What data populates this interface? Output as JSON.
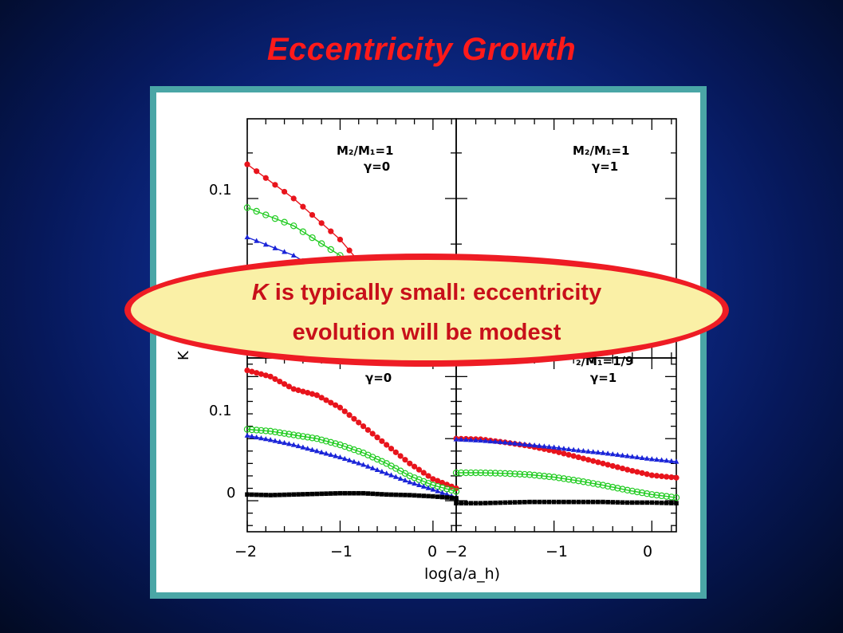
{
  "slide": {
    "title": "Eccentricity Growth"
  },
  "callout": {
    "italic_symbol": "K",
    "line1_rest": " is typically small: eccentricity",
    "line2": "evolution will be modest"
  },
  "figure": {
    "xlabel": "log(a/a_h)",
    "ylabel_fragment": "K",
    "colors": {
      "red": "#e8141c",
      "green": "#22cc22",
      "blue": "#1a24d8",
      "black": "#000000"
    },
    "panels": [
      {
        "id": "top-left",
        "label_mass": "M₂/M₁=1",
        "label_gamma": "γ=0",
        "y_tick_labels": [
          "0.1"
        ]
      },
      {
        "id": "top-right",
        "label_mass": "M₂/M₁=1",
        "label_gamma": "γ=1",
        "y_tick_labels": []
      },
      {
        "id": "bottom-left",
        "label_mass": "",
        "label_gamma": "γ=0",
        "y_tick_labels": [
          "0.1",
          "0"
        ]
      },
      {
        "id": "bottom-right",
        "label_mass": "₂/M₁=1/9",
        "label_gamma": "γ=1",
        "y_tick_labels": []
      }
    ],
    "x_tick_labels_left": [
      "−2",
      "−1",
      "0"
    ],
    "x_tick_labels_right": [
      "−2",
      "−1",
      "0"
    ]
  },
  "chart_data": [
    {
      "type": "line",
      "panel": "top-left",
      "title": "",
      "xlabel": "log(a/a_h)",
      "ylabel": "K",
      "xlim": [
        -2,
        0.25
      ],
      "x": [
        -2.0,
        -1.5,
        -1.0,
        -0.5,
        -0.25,
        0.0
      ],
      "series": [
        {
          "color": "#e8141c",
          "marker": "filled-circle",
          "values": [
            0.115,
            0.1,
            0.082,
            0.058,
            0.047,
            0.036
          ]
        },
        {
          "color": "#22cc22",
          "marker": "open-circle",
          "values": [
            0.096,
            0.088,
            0.075,
            0.061,
            0.055,
            0.05
          ]
        },
        {
          "color": "#1a24d8",
          "marker": "triangle",
          "values": [
            0.083,
            0.075,
            0.063,
            0.053,
            0.05,
            0.046
          ]
        }
      ]
    },
    {
      "type": "line",
      "panel": "top-right",
      "title": "",
      "xlabel": "log(a/a_h)",
      "ylabel": "",
      "xlim": [
        -2,
        0.25
      ],
      "x": [],
      "series": []
    },
    {
      "type": "line",
      "panel": "bottom-left",
      "title": "",
      "xlabel": "log(a/a_h)",
      "ylabel": "K",
      "xlim": [
        -2,
        0.25
      ],
      "x": [
        -2.0,
        -1.75,
        -1.5,
        -1.25,
        -1.0,
        -0.75,
        -0.5,
        -0.25,
        0.0,
        0.25
      ],
      "series": [
        {
          "color": "#e8141c",
          "marker": "filled-circle",
          "values": [
            0.21,
            0.2,
            0.18,
            0.17,
            0.15,
            0.12,
            0.09,
            0.06,
            0.035,
            0.02
          ]
        },
        {
          "color": "#22cc22",
          "marker": "open-circle",
          "values": [
            0.115,
            0.112,
            0.106,
            0.1,
            0.09,
            0.077,
            0.06,
            0.04,
            0.025,
            0.015
          ]
        },
        {
          "color": "#1a24d8",
          "marker": "triangle",
          "values": [
            0.105,
            0.098,
            0.09,
            0.08,
            0.07,
            0.058,
            0.044,
            0.03,
            0.018,
            0.005
          ]
        },
        {
          "color": "#000000",
          "marker": "square",
          "values": [
            0.01,
            0.009,
            0.01,
            0.011,
            0.012,
            0.012,
            0.01,
            0.009,
            0.007,
            0.004
          ]
        }
      ]
    },
    {
      "type": "line",
      "panel": "bottom-right",
      "title": "",
      "xlabel": "log(a/a_h)",
      "ylabel": "",
      "xlim": [
        -2,
        0.25
      ],
      "x": [
        -2.0,
        -1.75,
        -1.5,
        -1.25,
        -1.0,
        -0.75,
        -0.5,
        -0.25,
        0.0,
        0.25
      ],
      "series": [
        {
          "color": "#e8141c",
          "marker": "filled-circle",
          "values": [
            0.1,
            0.099,
            0.094,
            0.088,
            0.08,
            0.07,
            0.06,
            0.05,
            0.041,
            0.037
          ]
        },
        {
          "color": "#1a24d8",
          "marker": "triangle",
          "values": [
            0.099,
            0.097,
            0.094,
            0.09,
            0.086,
            0.081,
            0.077,
            0.072,
            0.067,
            0.063
          ]
        },
        {
          "color": "#22cc22",
          "marker": "open-circle",
          "values": [
            0.045,
            0.045,
            0.044,
            0.042,
            0.038,
            0.032,
            0.025,
            0.017,
            0.01,
            0.005
          ]
        },
        {
          "color": "#000000",
          "marker": "square",
          "values": [
            -0.004,
            -0.004,
            -0.003,
            -0.002,
            -0.002,
            -0.002,
            -0.002,
            -0.003,
            -0.003,
            -0.004
          ]
        }
      ]
    }
  ]
}
